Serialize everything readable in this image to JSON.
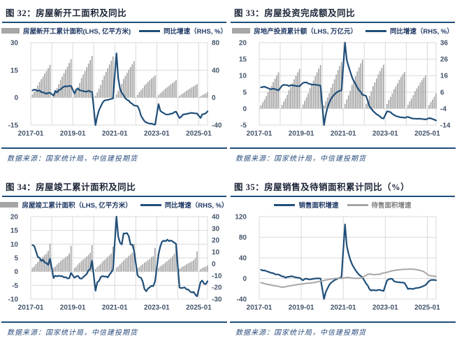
{
  "accent_color": "#1f4e79",
  "grid_color": "#d9d9d9",
  "zero_line_color": "#bdbdbd",
  "axis_text_color": "#44546a",
  "chart_data": [
    {
      "type": "bar+line",
      "title": "图 32：房屋新开工面积及同比",
      "source": "数据来源：国家统计局，中信建投期货",
      "x_start": "2017-01",
      "x_ticks": [
        "2017-01",
        "2019-01",
        "2021-01",
        "2023-01",
        "2025-01"
      ],
      "x_tick_indices": [
        0,
        24,
        48,
        72,
        96
      ],
      "year_grid": true,
      "left_axis": {
        "lim": [
          -15,
          30
        ],
        "ticks": [
          30,
          15,
          0,
          -15
        ]
      },
      "right_axis": {
        "lim": [
          -40,
          80
        ],
        "ticks": [
          80,
          40,
          0,
          -40
        ]
      },
      "series": [
        {
          "name": "房屋新开工累计面积(LHS, 亿平方米)",
          "type": "bar",
          "axis": "left",
          "color": "#a6a6a6",
          "values": [
            null,
            1.76,
            3.16,
            4.84,
            6.56,
            8.56,
            10.05,
            11.46,
            13.11,
            14.51,
            16.13,
            17.87,
            null,
            1.78,
            3.46,
            5.16,
            7.23,
            9.58,
            11.46,
            13.29,
            15.26,
            16.85,
            18.88,
            20.93,
            null,
            1.89,
            3.87,
            5.85,
            7.99,
            10.55,
            12.56,
            14.48,
            16.57,
            18.57,
            20.52,
            22.72,
            null,
            1.04,
            2.82,
            4.77,
            6.96,
            9.75,
            12.0,
            13.96,
            16.0,
            18.07,
            20.11,
            22.44,
            null,
            1.71,
            3.62,
            5.39,
            7.45,
            10.11,
            11.89,
            13.52,
            15.29,
            16.67,
            18.28,
            19.89,
            null,
            1.5,
            2.98,
            3.97,
            5.16,
            6.64,
            7.61,
            8.51,
            9.48,
            10.37,
            11.16,
            12.06,
            null,
            1.36,
            2.41,
            3.12,
            3.99,
            4.99,
            5.74,
            6.39,
            7.26,
            7.92,
            8.75,
            9.54,
            null,
            0.95,
            1.73,
            2.35,
            3.01,
            3.8,
            4.37,
            4.95,
            5.61,
            6.12,
            6.73,
            7.39,
            null,
            0.66,
            1.31,
            1.79,
            2.32,
            3.04
          ]
        },
        {
          "name": "同比增速（RHS, %）",
          "type": "line",
          "axis": "right",
          "color": "#1f4e79",
          "values": [
            null,
            10.4,
            11.6,
            11.1,
            9.5,
            10.6,
            8.0,
            7.6,
            6.8,
            5.6,
            6.9,
            7.0,
            null,
            2.9,
            9.7,
            7.3,
            10.8,
            11.8,
            14.4,
            15.9,
            16.4,
            16.3,
            16.8,
            17.2,
            null,
            6.0,
            11.9,
            13.1,
            10.5,
            10.1,
            9.5,
            8.9,
            8.6,
            10.0,
            8.6,
            8.5,
            null,
            -44.9,
            -27.2,
            -18.4,
            -12.8,
            -7.6,
            -4.5,
            -3.6,
            -3.4,
            -2.6,
            -2.0,
            -1.2,
            null,
            64.3,
            28.2,
            12.8,
            6.9,
            3.6,
            -0.9,
            -3.2,
            -4.5,
            -7.7,
            -9.1,
            -11.4,
            null,
            -12.2,
            -17.5,
            -26.3,
            -30.6,
            -34.4,
            -36.1,
            -37.2,
            -38.0,
            -37.8,
            -38.9,
            -39.4,
            null,
            -9.4,
            -19.2,
            -21.2,
            -22.6,
            -24.3,
            -24.5,
            -24.4,
            -23.4,
            -23.2,
            -21.2,
            -20.4,
            null,
            -29.7,
            -27.8,
            -24.6,
            -24.2,
            -23.7,
            -23.2,
            -22.5,
            -22.2,
            -22.6,
            -23.0,
            -23.0,
            null,
            -29.6,
            -24.4,
            -23.8,
            -22.8,
            -20.0
          ]
        }
      ]
    },
    {
      "type": "bar+line",
      "title": "图 33：房屋投资完成额及同比",
      "source": "数据来源：国家统计局，中信建投期货",
      "x_start": "2017-01",
      "x_ticks": [
        "2017-01",
        "2019-01",
        "2021-01",
        "2023-01",
        "2025-01"
      ],
      "x_tick_indices": [
        0,
        24,
        48,
        72,
        96
      ],
      "year_grid": true,
      "left_axis": {
        "lim": [
          -5,
          20
        ],
        "ticks": [
          20,
          15,
          10,
          5,
          0,
          -5
        ]
      },
      "right_axis": {
        "lim": [
          -14,
          36
        ],
        "ticks": [
          36,
          26,
          16,
          6,
          -4,
          -14
        ]
      },
      "series": [
        {
          "name": "房地产投资累计额（LHS, 万亿元）",
          "type": "bar",
          "axis": "left",
          "color": "#a6a6a6",
          "values": [
            null,
            0.99,
            1.93,
            2.77,
            3.76,
            5.06,
            5.98,
            6.94,
            8.06,
            9.05,
            10.04,
            10.98,
            null,
            1.08,
            2.13,
            3.03,
            4.14,
            5.55,
            6.56,
            7.65,
            8.87,
            9.93,
            11.01,
            12.03,
            null,
            1.21,
            2.38,
            3.42,
            4.62,
            6.16,
            7.28,
            8.46,
            9.8,
            10.98,
            12.13,
            13.22,
            null,
            1.01,
            2.2,
            3.32,
            4.59,
            6.28,
            7.54,
            8.85,
            10.34,
            11.66,
            12.95,
            14.14,
            null,
            1.4,
            2.76,
            4.02,
            5.42,
            7.22,
            8.49,
            9.81,
            11.26,
            12.49,
            13.73,
            14.76,
            null,
            1.45,
            2.77,
            3.92,
            5.21,
            6.83,
            7.95,
            9.08,
            10.36,
            11.39,
            12.39,
            13.29,
            null,
            1.37,
            2.6,
            3.55,
            4.57,
            5.86,
            6.77,
            7.67,
            8.73,
            9.59,
            10.4,
            11.09,
            null,
            1.18,
            2.21,
            3.09,
            4.06,
            5.25,
            6.09,
            6.9,
            7.87,
            8.62,
            9.39,
            10.03,
            null,
            1.07,
            1.99,
            2.73,
            3.6,
            4.67
          ]
        },
        {
          "name": "同比增速（RHS, %）",
          "type": "line",
          "axis": "right",
          "color": "#1f4e79",
          "values": [
            null,
            8.9,
            9.1,
            9.3,
            8.8,
            8.5,
            7.9,
            7.8,
            8.1,
            7.8,
            7.5,
            7.0,
            null,
            9.9,
            10.4,
            10.3,
            10.2,
            9.7,
            10.2,
            10.1,
            9.9,
            9.7,
            9.7,
            9.5,
            null,
            11.6,
            11.8,
            11.9,
            11.2,
            10.9,
            10.6,
            10.5,
            10.5,
            10.3,
            10.2,
            9.9,
            null,
            -16.3,
            -7.7,
            -3.3,
            -0.3,
            1.9,
            3.4,
            4.6,
            5.6,
            6.3,
            6.8,
            7.0,
            null,
            38.3,
            25.6,
            21.6,
            18.3,
            15.0,
            12.7,
            10.9,
            8.8,
            7.2,
            6.0,
            4.4,
            null,
            3.7,
            0.7,
            -2.7,
            -4.0,
            -5.4,
            -6.4,
            -7.4,
            -8.0,
            -8.8,
            -9.8,
            -10.0,
            null,
            -5.7,
            -5.8,
            -6.2,
            -7.2,
            -7.9,
            -8.5,
            -8.8,
            -9.1,
            -9.3,
            -9.4,
            -9.6,
            null,
            -9.0,
            -9.5,
            -9.8,
            -10.1,
            -10.1,
            -10.2,
            -10.2,
            -10.1,
            -10.3,
            -10.4,
            -10.6,
            null,
            -9.8,
            -9.9,
            -10.3,
            -10.7,
            -11.2
          ]
        }
      ]
    },
    {
      "type": "bar+line",
      "title": "图 34：房屋竣工累计面积及同比",
      "source": "数据来源：国家统计局，中信建投期货",
      "x_start": "2017-01",
      "x_ticks": [
        "2017-01",
        "2019-01",
        "2021-01",
        "2023-01",
        "2025-01"
      ],
      "x_tick_indices": [
        0,
        24,
        48,
        72,
        96
      ],
      "year_grid": true,
      "left_axis": {
        "lim": [
          -10,
          20
        ],
        "ticks": [
          20,
          15,
          10,
          5,
          0,
          -5,
          -10
        ]
      },
      "right_axis": {
        "lim": [
          -30,
          40
        ],
        "ticks": [
          40,
          30,
          20,
          10,
          0,
          -10,
          -20,
          -30
        ]
      },
      "series": [
        {
          "name": "房屋竣工累计面积（LHS, 亿平方米）",
          "type": "bar",
          "axis": "left",
          "color": "#a6a6a6",
          "values": [
            null,
            1.41,
            1.9,
            2.71,
            3.44,
            4.18,
            4.87,
            5.42,
            6.04,
            6.6,
            7.52,
            10.15,
            null,
            1.41,
            1.83,
            2.57,
            3.18,
            3.81,
            4.37,
            4.71,
            5.23,
            5.75,
            6.56,
            9.36,
            null,
            1.25,
            1.86,
            2.61,
            3.2,
            3.87,
            4.42,
            4.89,
            5.5,
            6.1,
            6.85,
            9.59,
            null,
            0.95,
            1.59,
            2.22,
            2.85,
            3.63,
            4.19,
            4.7,
            5.36,
            5.92,
            6.59,
            9.12,
            null,
            1.4,
            1.92,
            2.63,
            3.3,
            3.97,
            4.61,
            5.02,
            5.69,
            6.22,
            6.88,
            10.14,
            null,
            1.22,
            1.69,
            2.2,
            2.67,
            3.29,
            3.67,
            4.17,
            4.62,
            5.3,
            5.57,
            8.62,
            null,
            1.32,
            1.94,
            2.37,
            2.77,
            3.39,
            3.84,
            4.37,
            4.88,
            5.53,
            6.52,
            9.98,
            null,
            1.04,
            1.53,
            1.88,
            2.25,
            2.65,
            3.0,
            3.33,
            3.68,
            4.16,
            4.83,
            7.37,
            null,
            0.88,
            1.31,
            1.56,
            1.84,
            2.25
          ]
        },
        {
          "name": "同比增速（RHS, %）",
          "type": "line",
          "axis": "right",
          "color": "#1f4e79",
          "values": [
            null,
            15.8,
            15.1,
            10.6,
            5.9,
            5.0,
            2.4,
            3.4,
            1.0,
            0.6,
            -1.0,
            4.4,
            null,
            -12.1,
            -10.1,
            -10.7,
            -10.1,
            -10.6,
            -10.5,
            -11.6,
            -11.4,
            -12.5,
            -12.3,
            -7.8,
            null,
            -11.9,
            -10.8,
            -10.3,
            -12.4,
            -12.7,
            -11.3,
            -10.0,
            -8.6,
            -5.5,
            -4.5,
            2.6,
            null,
            -22.9,
            -15.8,
            -14.5,
            -11.3,
            -10.5,
            -10.9,
            -10.8,
            -11.6,
            -9.2,
            -7.3,
            -4.9,
            null,
            40.4,
            22.9,
            17.9,
            16.4,
            25.7,
            25.7,
            26.0,
            23.4,
            16.3,
            16.2,
            11.2,
            null,
            -9.8,
            -11.5,
            -11.9,
            -15.3,
            -21.5,
            -23.3,
            -21.1,
            -19.9,
            -18.7,
            -19.0,
            -15.0,
            null,
            8.0,
            14.7,
            18.8,
            19.6,
            19.0,
            20.5,
            19.2,
            19.8,
            19.0,
            17.9,
            17.0,
            null,
            -20.2,
            -20.7,
            -20.4,
            -20.1,
            -21.8,
            -21.8,
            -23.6,
            -24.4,
            -23.9,
            -26.2,
            -27.7,
            null,
            -15.6,
            -14.3,
            -16.9,
            -17.3,
            -14.8
          ]
        }
      ]
    },
    {
      "type": "line",
      "title": "图 35：房屋销售及待销面积累计同比（%）",
      "source": "数据来源：国家统计局，中信建投期货",
      "x_start": "2017-01",
      "x_ticks": [
        "2017-01",
        "2019-01",
        "2021-01",
        "2023-01",
        "2025-01"
      ],
      "x_tick_indices": [
        0,
        24,
        48,
        72,
        96
      ],
      "year_grid": false,
      "left_axis": {
        "lim": [
          -40,
          120
        ],
        "ticks": [
          120,
          80,
          40,
          0,
          -40
        ]
      },
      "right_axis": null,
      "series": [
        {
          "name": "销售面积增速",
          "type": "line",
          "axis": "left",
          "color": "#1f4e79",
          "values": [
            null,
            16.9,
            15.5,
            15.7,
            14.3,
            13.1,
            12.0,
            10.7,
            10.3,
            8.2,
            7.9,
            7.7,
            null,
            4.1,
            3.6,
            1.3,
            2.9,
            3.3,
            4.2,
            4.0,
            2.9,
            2.2,
            1.4,
            1.3,
            null,
            -3.6,
            -0.9,
            -0.3,
            -1.6,
            -1.8,
            -1.3,
            -0.6,
            -0.1,
            0.1,
            0.2,
            -0.1,
            null,
            -39.9,
            -26.3,
            -19.3,
            -12.3,
            -8.4,
            -5.8,
            -3.3,
            -1.8,
            0.0,
            1.3,
            2.6,
            null,
            104.9,
            63.8,
            48.1,
            36.3,
            27.7,
            21.5,
            15.9,
            11.3,
            7.3,
            4.8,
            1.9,
            null,
            -9.6,
            -13.8,
            -20.9,
            -23.6,
            -22.2,
            -23.1,
            -23.0,
            -22.2,
            -22.3,
            -23.3,
            -24.3,
            null,
            -3.6,
            -1.8,
            -0.4,
            -0.9,
            -5.3,
            -6.5,
            -7.1,
            -7.5,
            -7.8,
            -8.0,
            -8.5,
            null,
            -20.5,
            -19.4,
            -20.2,
            -20.3,
            -19.0,
            -18.6,
            -18.0,
            -17.1,
            -15.8,
            -14.3,
            -12.9,
            null,
            -5.1,
            -3.0,
            -2.8,
            -2.9,
            -3.5
          ]
        },
        {
          "name": "待售面积增速",
          "type": "line",
          "axis": "left",
          "color": "#a6a6a6",
          "label_color": "#7f7f7f",
          "values": [
            null,
            -8.1,
            -9.0,
            -10.0,
            -10.8,
            -11.5,
            -12.2,
            -12.9,
            -13.6,
            -14.2,
            -14.8,
            -15.3,
            null,
            -17.0,
            -16.7,
            -16.0,
            -15.2,
            -14.7,
            -14.1,
            -13.4,
            -13.0,
            -12.4,
            -11.7,
            -11.0,
            null,
            -10.6,
            -9.9,
            -9.4,
            -8.9,
            -8.9,
            -8.4,
            -8.0,
            -7.4,
            -6.6,
            -5.8,
            -4.9,
            null,
            -4.0,
            -3.0,
            -2.4,
            -1.8,
            -1.2,
            -0.6,
            -0.2,
            0.1,
            0.3,
            0.5,
            0.1,
            null,
            1.4,
            2.1,
            1.6,
            1.3,
            0.8,
            0.5,
            0.2,
            0.4,
            0.6,
            1.0,
            2.4,
            null,
            6.0,
            8.2,
            8.4,
            8.6,
            7.3,
            7.5,
            8.0,
            8.1,
            8.0,
            10.0,
            10.5,
            null,
            12.0,
            13.2,
            14.1,
            14.9,
            15.5,
            16.1,
            16.6,
            17.0,
            17.3,
            17.6,
            17.8,
            null,
            18.1,
            18.3,
            18.2,
            18.0,
            17.6,
            17.0,
            16.3,
            15.5,
            14.5,
            13.3,
            10.6,
            null,
            5.9,
            5.3,
            4.8,
            4.4,
            3.9
          ]
        }
      ]
    }
  ]
}
